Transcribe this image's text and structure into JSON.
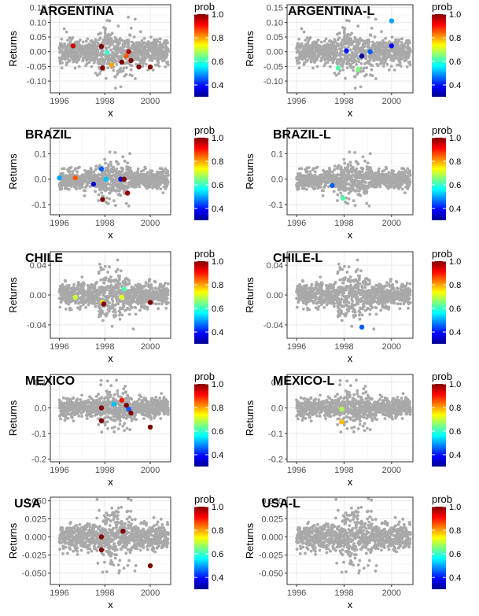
{
  "figure": {
    "layout": "5 rows x 2 columns of scatter panels, each with its own colorbar legend"
  },
  "chart_data": [
    {
      "type": "scatter",
      "title": "ARGENTINA",
      "xlabel": "x",
      "ylabel": "Returns",
      "xlim": [
        1995.6,
        2000.9
      ],
      "ylim": [
        -0.14,
        0.16
      ],
      "yticks": [
        -0.1,
        -0.05,
        0.0,
        0.05,
        0.1,
        0.15
      ],
      "ytick_labels": [
        "-0.10",
        "-0.05",
        "0.00",
        "0.05",
        "0.10",
        "0.15"
      ],
      "xticks": [
        1996,
        1998,
        2000
      ],
      "xtick_labels": [
        "1996",
        "1998",
        "2000"
      ],
      "noise_scale": 0.022,
      "noise_seed": 11,
      "highlights": [
        {
          "x": 1996.6,
          "y": 0.02,
          "prob": 0.95
        },
        {
          "x": 1997.85,
          "y": 0.018,
          "prob": 1.0
        },
        {
          "x": 1998.1,
          "y": -0.003,
          "prob": 0.6
        },
        {
          "x": 1997.9,
          "y": -0.055,
          "prob": 1.0
        },
        {
          "x": 1998.3,
          "y": -0.045,
          "prob": 0.8
        },
        {
          "x": 1998.75,
          "y": -0.035,
          "prob": 1.0
        },
        {
          "x": 1998.95,
          "y": -0.015,
          "prob": 0.85
        },
        {
          "x": 1999.05,
          "y": 0.0,
          "prob": 0.97
        },
        {
          "x": 1999.15,
          "y": -0.03,
          "prob": 1.0
        },
        {
          "x": 1999.5,
          "y": -0.052,
          "prob": 1.0
        },
        {
          "x": 2000.0,
          "y": -0.052,
          "prob": 1.0
        }
      ],
      "legend": {
        "title": "prob",
        "labels": [
          "1.0",
          "0.8",
          "0.6",
          "0.4"
        ]
      }
    },
    {
      "type": "scatter",
      "title": "ARGENTINA-L",
      "xlabel": "x",
      "ylabel": "Returns",
      "xlim": [
        1995.6,
        2000.9
      ],
      "ylim": [
        -0.14,
        0.16
      ],
      "yticks": [
        -0.1,
        -0.05,
        0.0,
        0.05,
        0.1,
        0.15
      ],
      "ytick_labels": [
        "-0.10",
        "-0.05",
        "0.00",
        "0.05",
        "0.10",
        "0.15"
      ],
      "xticks": [
        1996,
        1998,
        2000
      ],
      "xtick_labels": [
        "1996",
        "1998",
        "2000"
      ],
      "noise_scale": 0.022,
      "noise_seed": 11,
      "highlights": [
        {
          "x": 2000.0,
          "y": 0.105,
          "prob": 0.5
        },
        {
          "x": 2000.0,
          "y": 0.02,
          "prob": 0.38
        },
        {
          "x": 1998.1,
          "y": 0.003,
          "prob": 0.4
        },
        {
          "x": 1999.1,
          "y": 0.0,
          "prob": 0.45
        },
        {
          "x": 1998.75,
          "y": -0.015,
          "prob": 0.33
        },
        {
          "x": 1997.75,
          "y": -0.055,
          "prob": 0.62
        },
        {
          "x": 1998.6,
          "y": -0.06,
          "prob": 0.65
        }
      ],
      "legend": {
        "title": "prob",
        "labels": [
          "1.0",
          "0.8",
          "0.6",
          "0.4"
        ]
      }
    },
    {
      "type": "scatter",
      "title": "BRAZIL",
      "xlabel": "x",
      "ylabel": "Returns",
      "xlim": [
        1995.6,
        2000.9
      ],
      "ylim": [
        -0.14,
        0.2
      ],
      "yticks": [
        -0.1,
        0.0,
        0.1
      ],
      "ytick_labels": [
        "-0.1",
        "0.0",
        "0.1"
      ],
      "xticks": [
        1996,
        1998,
        2000
      ],
      "xtick_labels": [
        "1996",
        "1998",
        "2000"
      ],
      "noise_scale": 0.018,
      "noise_seed": 23,
      "highlights": [
        {
          "x": 1996.0,
          "y": 0.005,
          "prob": 0.5
        },
        {
          "x": 1996.7,
          "y": 0.005,
          "prob": 0.85
        },
        {
          "x": 1997.85,
          "y": 0.04,
          "prob": 0.45
        },
        {
          "x": 1997.5,
          "y": -0.02,
          "prob": 0.35
        },
        {
          "x": 1998.05,
          "y": 0.0,
          "prob": 0.52
        },
        {
          "x": 1998.7,
          "y": 0.0,
          "prob": 0.35
        },
        {
          "x": 1998.85,
          "y": 0.0,
          "prob": 1.0
        },
        {
          "x": 1997.9,
          "y": -0.08,
          "prob": 1.0
        },
        {
          "x": 1999.0,
          "y": -0.055,
          "prob": 0.98
        }
      ],
      "legend": {
        "title": "prob",
        "labels": [
          "1.0",
          "0.8",
          "0.6",
          "0.4"
        ]
      }
    },
    {
      "type": "scatter",
      "title": "BRAZIL-L",
      "xlabel": "x",
      "ylabel": "Returns",
      "xlim": [
        1995.6,
        2000.9
      ],
      "ylim": [
        -0.14,
        0.2
      ],
      "yticks": [
        -0.1,
        0.0,
        0.1
      ],
      "ytick_labels": [
        "-0.1",
        "0.0",
        "0.1"
      ],
      "xticks": [
        1996,
        1998,
        2000
      ],
      "xtick_labels": [
        "1996",
        "1998",
        "2000"
      ],
      "noise_scale": 0.018,
      "noise_seed": 23,
      "highlights": [
        {
          "x": 1997.5,
          "y": -0.025,
          "prob": 0.45
        },
        {
          "x": 1997.95,
          "y": -0.075,
          "prob": 0.62
        }
      ],
      "legend": {
        "title": "prob",
        "labels": [
          "1.0",
          "0.8",
          "0.6",
          "0.4"
        ]
      }
    },
    {
      "type": "scatter",
      "title": "CHILE",
      "xlabel": "x",
      "ylabel": "Returns",
      "xlim": [
        1995.6,
        2000.9
      ],
      "ylim": [
        -0.058,
        0.058
      ],
      "yticks": [
        -0.04,
        0.0,
        0.04
      ],
      "ytick_labels": [
        "-0.04",
        "0.00",
        "0.04"
      ],
      "xticks": [
        1996,
        1998,
        2000
      ],
      "xtick_labels": [
        "1996",
        "1998",
        "2000"
      ],
      "noise_scale": 0.008,
      "noise_seed": 37,
      "highlights": [
        {
          "x": 1996.7,
          "y": -0.003,
          "prob": 0.7
        },
        {
          "x": 1997.9,
          "y": -0.01,
          "prob": 0.75
        },
        {
          "x": 1997.95,
          "y": -0.012,
          "prob": 1.0
        },
        {
          "x": 1998.75,
          "y": -0.003,
          "prob": 0.72
        },
        {
          "x": 1998.85,
          "y": 0.008,
          "prob": 0.62
        },
        {
          "x": 2000.0,
          "y": -0.01,
          "prob": 1.0
        }
      ],
      "legend": {
        "title": "prob",
        "labels": [
          "1.0",
          "0.8",
          "0.6",
          "0.4"
        ]
      }
    },
    {
      "type": "scatter",
      "title": "CHILE-L",
      "xlabel": "x",
      "ylabel": "Returns",
      "xlim": [
        1995.6,
        2000.9
      ],
      "ylim": [
        -0.058,
        0.058
      ],
      "yticks": [
        -0.04,
        0.0,
        0.04
      ],
      "ytick_labels": [
        "-0.04",
        "0.00",
        "0.04"
      ],
      "xticks": [
        1996,
        1998,
        2000
      ],
      "xtick_labels": [
        "1996",
        "1998",
        "2000"
      ],
      "noise_scale": 0.008,
      "noise_seed": 37,
      "highlights": [
        {
          "x": 1998.75,
          "y": -0.043,
          "prob": 0.45
        }
      ],
      "legend": {
        "title": "prob",
        "labels": [
          "1.0",
          "0.8",
          "0.6",
          "0.4"
        ]
      }
    },
    {
      "type": "scatter",
      "title": "MEXICO",
      "xlabel": "x",
      "ylabel": "Returns",
      "xlim": [
        1995.6,
        2000.9
      ],
      "ylim": [
        -0.21,
        0.13
      ],
      "yticks": [
        -0.2,
        -0.1,
        0.0,
        0.1
      ],
      "ytick_labels": [
        "-0.2",
        "-0.1",
        "0.0",
        "0.1"
      ],
      "xticks": [
        1996,
        1998,
        2000
      ],
      "xtick_labels": [
        "1996",
        "1998",
        "2000"
      ],
      "noise_scale": 0.018,
      "noise_seed": 53,
      "highlights": [
        {
          "x": 1997.85,
          "y": 0.0,
          "prob": 1.0
        },
        {
          "x": 1997.85,
          "y": -0.05,
          "prob": 1.0
        },
        {
          "x": 1998.4,
          "y": 0.015,
          "prob": 0.52
        },
        {
          "x": 1998.75,
          "y": 0.03,
          "prob": 0.9
        },
        {
          "x": 1998.95,
          "y": 0.01,
          "prob": 1.0
        },
        {
          "x": 1999.05,
          "y": -0.005,
          "prob": 0.45
        },
        {
          "x": 1999.15,
          "y": -0.02,
          "prob": 1.0
        },
        {
          "x": 2000.0,
          "y": -0.075,
          "prob": 1.0
        }
      ],
      "legend": {
        "title": "prob",
        "labels": [
          "1.0",
          "0.8",
          "0.6",
          "0.4"
        ]
      }
    },
    {
      "type": "scatter",
      "title": "MEXICO-L",
      "xlabel": "x",
      "ylabel": "Returns",
      "xlim": [
        1995.6,
        2000.9
      ],
      "ylim": [
        -0.21,
        0.13
      ],
      "yticks": [
        -0.2,
        -0.1,
        0.0,
        0.1
      ],
      "ytick_labels": [
        "-0.2",
        "-0.1",
        "0.0",
        "0.1"
      ],
      "xticks": [
        1996,
        1998,
        2000
      ],
      "xtick_labels": [
        "1996",
        "1998",
        "2000"
      ],
      "noise_scale": 0.018,
      "noise_seed": 53,
      "highlights": [
        {
          "x": 1997.9,
          "y": -0.005,
          "prob": 0.68
        },
        {
          "x": 1997.9,
          "y": -0.055,
          "prob": 0.78
        }
      ],
      "legend": {
        "title": "prob",
        "labels": [
          "1.0",
          "0.8",
          "0.6",
          "0.4"
        ]
      }
    },
    {
      "type": "scatter",
      "title": "USA",
      "xlabel": "x",
      "ylabel": "Returns",
      "xlim": [
        1995.6,
        2000.9
      ],
      "ylim": [
        -0.066,
        0.055
      ],
      "yticks": [
        -0.05,
        -0.025,
        0.0,
        0.025,
        0.05
      ],
      "ytick_labels": [
        "-0.050",
        "-0.025",
        "0.000",
        "0.025",
        "0.050"
      ],
      "xticks": [
        1996,
        1998,
        2000
      ],
      "xtick_labels": [
        "1996",
        "1998",
        "2000"
      ],
      "noise_scale": 0.009,
      "noise_seed": 71,
      "highlights": [
        {
          "x": 1997.85,
          "y": 0.0,
          "prob": 1.0
        },
        {
          "x": 1997.85,
          "y": -0.018,
          "prob": 1.0
        },
        {
          "x": 1998.8,
          "y": 0.008,
          "prob": 1.0
        },
        {
          "x": 2000.0,
          "y": -0.04,
          "prob": 1.0
        }
      ],
      "legend": {
        "title": "prob",
        "labels": [
          "1.0",
          "0.8",
          "0.6",
          "0.4"
        ]
      }
    },
    {
      "type": "scatter",
      "title": "USA-L",
      "xlabel": "x",
      "ylabel": "Returns",
      "xlim": [
        1995.6,
        2000.9
      ],
      "ylim": [
        -0.066,
        0.055
      ],
      "yticks": [
        -0.05,
        -0.025,
        0.0,
        0.025,
        0.05
      ],
      "ytick_labels": [
        "-0.050",
        "-0.025",
        "0.000",
        "0.025",
        "0.050"
      ],
      "xticks": [
        1996,
        1998,
        2000
      ],
      "xtick_labels": [
        "1996",
        "1998",
        "2000"
      ],
      "noise_scale": 0.009,
      "noise_seed": 71,
      "highlights": [],
      "legend": {
        "title": "prob",
        "labels": [
          "1.0",
          "0.8",
          "0.6",
          "0.4"
        ]
      }
    }
  ],
  "colors": {
    "background_points": "#a9a9a9",
    "grid_major": "#ebebeb",
    "grid_minor": "#f5f5f5",
    "frame": "#333333",
    "colorbar_stops": [
      "#00008f",
      "#0000ff",
      "#007fff",
      "#00ffff",
      "#7fff7f",
      "#ffff00",
      "#ff7f00",
      "#ff0000",
      "#800000"
    ]
  }
}
